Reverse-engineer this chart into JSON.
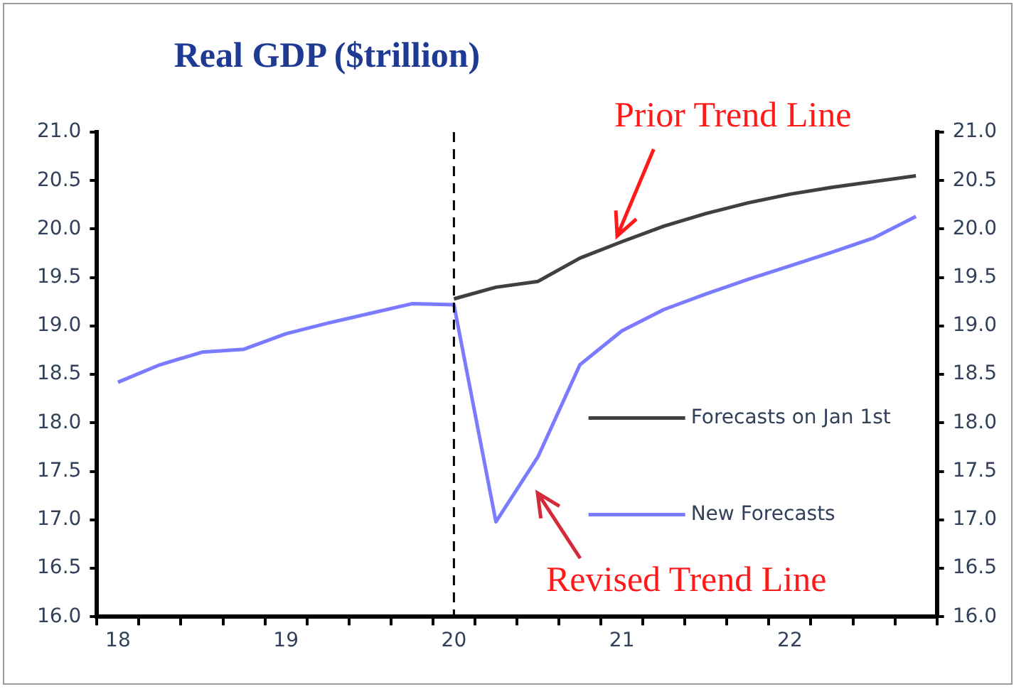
{
  "chart_data": {
    "type": "line",
    "title": "Real GDP ($trillion)",
    "categories": [
      "18",
      null,
      null,
      null,
      "19",
      null,
      null,
      null,
      "20",
      null,
      null,
      null,
      "21",
      null,
      null,
      null,
      "22",
      null,
      null,
      null
    ],
    "series": [
      {
        "name": "Forecasts on Jan 1st",
        "color": "#404040",
        "values": [
          null,
          null,
          null,
          null,
          null,
          null,
          null,
          null,
          19.28,
          19.4,
          19.46,
          19.7,
          19.87,
          20.03,
          20.16,
          20.27,
          20.36,
          20.43,
          20.49,
          20.55
        ]
      },
      {
        "name": "New Forecasts",
        "color": "#7b7bff",
        "values": [
          18.42,
          18.6,
          18.73,
          18.76,
          18.92,
          19.03,
          19.13,
          19.23,
          19.22,
          16.98,
          17.65,
          18.6,
          18.95,
          19.17,
          19.33,
          19.48,
          19.62,
          19.76,
          19.91,
          20.13
        ]
      }
    ],
    "ylim": [
      16,
      21
    ],
    "yticks": [
      {
        "value": 16,
        "label": "16.0"
      },
      {
        "value": 16.5,
        "label": "16.5"
      },
      {
        "value": 17,
        "label": "17.0"
      },
      {
        "value": 17.5,
        "label": "17.5"
      },
      {
        "value": 18,
        "label": "18.0"
      },
      {
        "value": 18.5,
        "label": "18.5"
      },
      {
        "value": 19,
        "label": "19.0"
      },
      {
        "value": 19.5,
        "label": "19.5"
      },
      {
        "value": 20,
        "label": "20.0"
      },
      {
        "value": 20.5,
        "label": "20.5"
      },
      {
        "value": 21,
        "label": "21.0"
      }
    ],
    "y2lim": [
      16,
      21
    ],
    "y2ticks": [
      {
        "value": 16,
        "label": "16.0"
      },
      {
        "value": 16.5,
        "label": "16.5"
      },
      {
        "value": 17,
        "label": "17.0"
      },
      {
        "value": 17.5,
        "label": "17.5"
      },
      {
        "value": 18,
        "label": "18.0"
      },
      {
        "value": 18.5,
        "label": "18.5"
      },
      {
        "value": 19,
        "label": "19.0"
      },
      {
        "value": 19.5,
        "label": "19.5"
      },
      {
        "value": 20,
        "label": "20.0"
      },
      {
        "value": 20.5,
        "label": "20.5"
      },
      {
        "value": 21,
        "label": "21.0"
      }
    ],
    "ref_lines": [
      {
        "axis": "x",
        "value": "20",
        "color": "#000000",
        "line_style": "dashed"
      }
    ],
    "annotations": [
      {
        "text": "Prior Trend Line",
        "x": "21",
        "y": 19.87
      },
      "Revised Trend Line"
    ],
    "legend": "bottom right",
    "grid": false,
    "marker": "none",
    "line_style": "solid"
  }
}
